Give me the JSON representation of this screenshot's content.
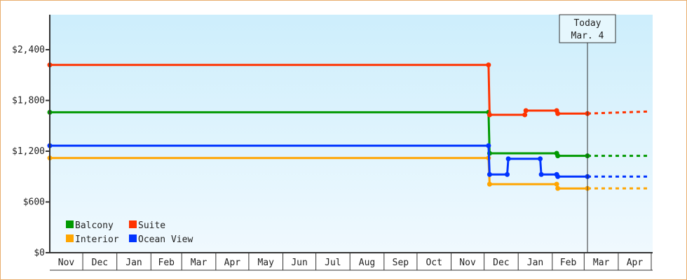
{
  "chart_data": {
    "type": "line",
    "step": true,
    "x_range": [
      "2022-11-01",
      "2024-05-01"
    ],
    "x_tick_labels": [
      "Nov",
      "Dec",
      "Jan",
      "Feb",
      "Mar",
      "Apr",
      "May",
      "Jun",
      "Jul",
      "Aug",
      "Sep",
      "Oct",
      "Nov",
      "Dec",
      "Jan",
      "Feb",
      "Mar",
      "Apr"
    ],
    "ylim": [
      0,
      2800
    ],
    "y_ticks": [
      0,
      600,
      1200,
      1800,
      2400
    ],
    "y_tick_labels": [
      "$0",
      "$600",
      "$1,200",
      "$1,800",
      "$2,400"
    ],
    "grid": false,
    "legend_position": "bottom-left",
    "today": {
      "date": "2024-03-04",
      "label_line1": "Today",
      "label_line2": "Mar. 4"
    },
    "series": [
      {
        "name": "Balcony",
        "color": "#009900",
        "points": [
          [
            "2022-11-01",
            1660
          ],
          [
            "2023-12-05",
            1660
          ],
          [
            "2023-12-06",
            1175
          ],
          [
            "2024-02-05",
            1175
          ],
          [
            "2024-02-06",
            1145
          ],
          [
            "2024-03-04",
            1145
          ]
        ],
        "forecast": [
          [
            "2024-03-04",
            1145
          ],
          [
            "2024-04-30",
            1145
          ]
        ]
      },
      {
        "name": "Suite",
        "color": "#ff3300",
        "points": [
          [
            "2022-11-01",
            2220
          ],
          [
            "2023-12-05",
            2220
          ],
          [
            "2023-12-06",
            1630
          ],
          [
            "2024-01-07",
            1630
          ],
          [
            "2024-01-08",
            1680
          ],
          [
            "2024-02-05",
            1680
          ],
          [
            "2024-02-06",
            1645
          ],
          [
            "2024-03-04",
            1645
          ]
        ],
        "forecast": [
          [
            "2024-03-04",
            1645
          ],
          [
            "2024-04-30",
            1670
          ]
        ]
      },
      {
        "name": "Interior",
        "color": "#ffa500",
        "points": [
          [
            "2022-11-01",
            1120
          ],
          [
            "2023-12-05",
            1120
          ],
          [
            "2023-12-06",
            810
          ],
          [
            "2024-02-05",
            810
          ],
          [
            "2024-02-06",
            760
          ],
          [
            "2024-03-04",
            760
          ]
        ],
        "forecast": [
          [
            "2024-03-04",
            760
          ],
          [
            "2024-04-30",
            760
          ]
        ]
      },
      {
        "name": "Ocean View",
        "color": "#0033ff",
        "points": [
          [
            "2022-11-01",
            1265
          ],
          [
            "2023-12-05",
            1265
          ],
          [
            "2023-12-06",
            925
          ],
          [
            "2023-12-22",
            925
          ],
          [
            "2023-12-23",
            1110
          ],
          [
            "2024-01-21",
            1110
          ],
          [
            "2024-01-22",
            925
          ],
          [
            "2024-02-05",
            925
          ],
          [
            "2024-02-06",
            900
          ],
          [
            "2024-03-04",
            900
          ]
        ],
        "forecast": [
          [
            "2024-03-04",
            900
          ],
          [
            "2024-04-30",
            900
          ]
        ]
      }
    ]
  }
}
